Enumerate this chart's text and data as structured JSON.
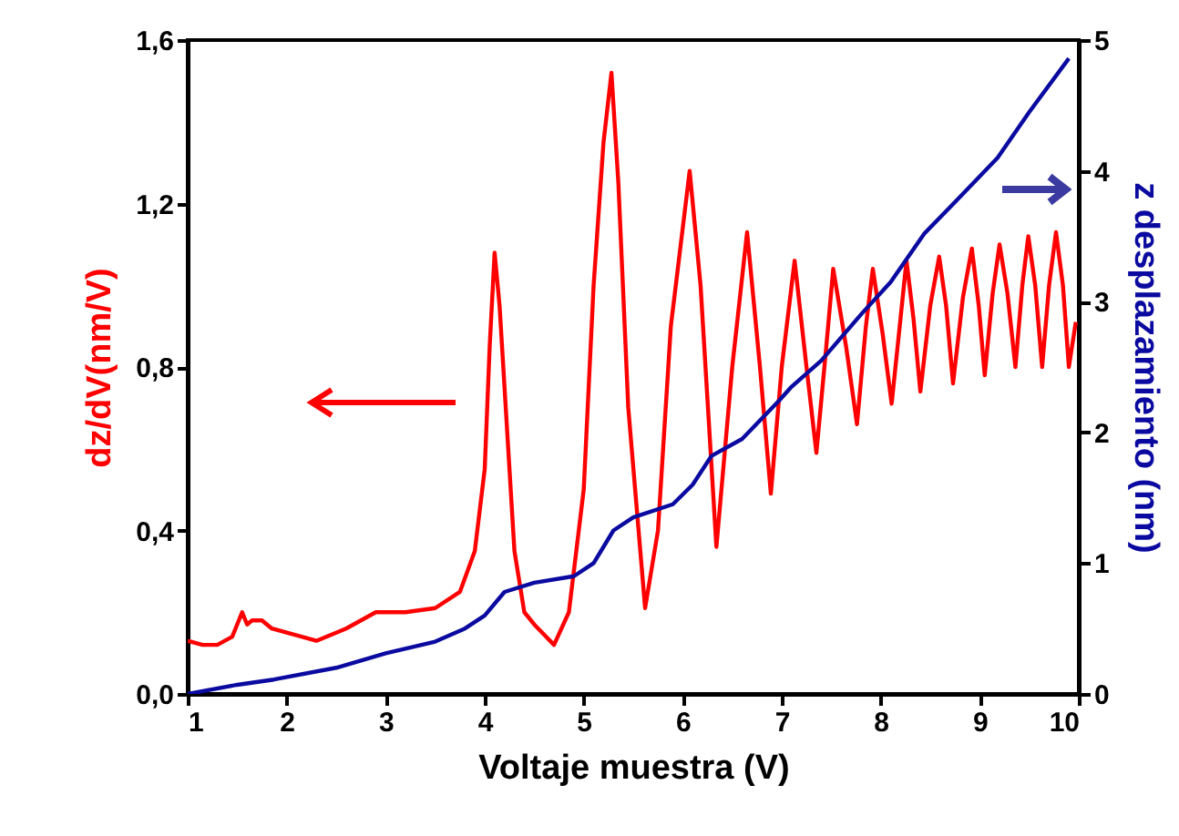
{
  "chart_data": {
    "type": "line",
    "xlabel": "Voltaje muestra (V)",
    "ylabel": "dz/dV(nm/V)",
    "y2label": "z desplazamiento (nm)",
    "xlim": [
      1,
      10
    ],
    "xticks": [
      1,
      2,
      3,
      4,
      5,
      6,
      7,
      8,
      9,
      10
    ],
    "ylim": [
      0,
      1.6
    ],
    "yticks": [
      {
        "value": 0,
        "label": "0,0"
      },
      {
        "value": 0.4,
        "label": "0,4"
      },
      {
        "value": 0.8,
        "label": "0,8"
      },
      {
        "value": 1.2,
        "label": "1,2"
      },
      {
        "value": 1.6,
        "label": "1,6"
      }
    ],
    "y2lim": [
      0,
      5
    ],
    "y2ticks": [
      0,
      1,
      2,
      3,
      4,
      5
    ],
    "series": [
      {
        "color": "#ff0000",
        "x": [
          1.0,
          1.15,
          1.3,
          1.45,
          1.55,
          1.6,
          1.65,
          1.75,
          1.85,
          2.0,
          2.3,
          2.6,
          2.9,
          3.2,
          3.5,
          3.75,
          3.9,
          4.0,
          4.05,
          4.1,
          4.15,
          4.2,
          4.3,
          4.4,
          4.5,
          4.7,
          4.85,
          5.0,
          5.1,
          5.2,
          5.28,
          5.35,
          5.45,
          5.62,
          5.75,
          5.88,
          6.07,
          6.18,
          6.34,
          6.5,
          6.65,
          6.78,
          6.89,
          7.0,
          7.13,
          7.25,
          7.35,
          7.45,
          7.52,
          7.65,
          7.76,
          7.85,
          7.92,
          8.02,
          8.11,
          8.2,
          8.26,
          8.33,
          8.4,
          8.5,
          8.59,
          8.66,
          8.73,
          8.83,
          8.92,
          8.99,
          9.05,
          9.13,
          9.2,
          9.28,
          9.36,
          9.43,
          9.49,
          9.56,
          9.63,
          9.7,
          9.77,
          9.84,
          9.9,
          9.97
        ],
        "values": [
          0.13,
          0.12,
          0.12,
          0.14,
          0.2,
          0.17,
          0.18,
          0.18,
          0.16,
          0.15,
          0.13,
          0.16,
          0.2,
          0.2,
          0.21,
          0.25,
          0.35,
          0.55,
          0.85,
          1.08,
          0.95,
          0.75,
          0.35,
          0.2,
          0.17,
          0.12,
          0.2,
          0.5,
          1.0,
          1.35,
          1.52,
          1.25,
          0.7,
          0.21,
          0.4,
          0.9,
          1.28,
          1.0,
          0.36,
          0.8,
          1.13,
          0.8,
          0.49,
          0.8,
          1.06,
          0.8,
          0.59,
          0.85,
          1.04,
          0.85,
          0.66,
          0.9,
          1.04,
          0.88,
          0.71,
          0.92,
          1.06,
          0.92,
          0.74,
          0.95,
          1.07,
          0.95,
          0.76,
          0.97,
          1.09,
          0.95,
          0.78,
          0.98,
          1.1,
          0.98,
          0.8,
          1.0,
          1.12,
          1.0,
          0.8,
          1.0,
          1.13,
          1.0,
          0.8,
          0.91
        ]
      },
      {
        "color": "#0a0aa0",
        "axis": "y2",
        "x": [
          1.0,
          1.5,
          1.87,
          2.5,
          3.0,
          3.5,
          3.8,
          4.0,
          4.2,
          4.5,
          4.9,
          5.1,
          5.3,
          5.5,
          5.9,
          6.1,
          6.29,
          6.6,
          6.97,
          7.1,
          7.4,
          7.81,
          8.1,
          8.44,
          8.8,
          9.18,
          9.5,
          9.9
        ],
        "values": [
          0,
          0.07,
          0.11,
          0.2,
          0.31,
          0.4,
          0.5,
          0.6,
          0.78,
          0.85,
          0.9,
          1.0,
          1.25,
          1.35,
          1.45,
          1.6,
          1.82,
          1.95,
          2.24,
          2.35,
          2.55,
          2.91,
          3.15,
          3.52,
          3.8,
          4.1,
          4.45,
          4.86
        ]
      }
    ]
  }
}
